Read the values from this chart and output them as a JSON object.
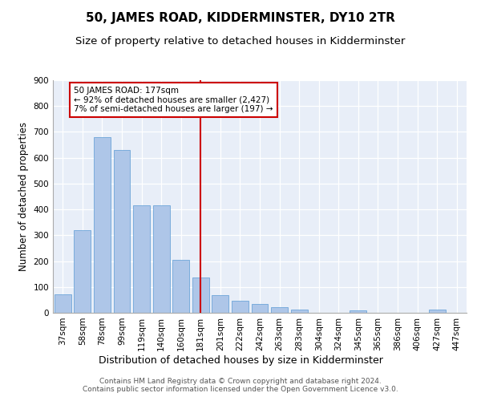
{
  "title": "50, JAMES ROAD, KIDDERMINSTER, DY10 2TR",
  "subtitle": "Size of property relative to detached houses in Kidderminster",
  "xlabel": "Distribution of detached houses by size in Kidderminster",
  "ylabel": "Number of detached properties",
  "categories": [
    "37sqm",
    "58sqm",
    "78sqm",
    "99sqm",
    "119sqm",
    "140sqm",
    "160sqm",
    "181sqm",
    "201sqm",
    "222sqm",
    "242sqm",
    "263sqm",
    "283sqm",
    "304sqm",
    "324sqm",
    "345sqm",
    "365sqm",
    "386sqm",
    "406sqm",
    "427sqm",
    "447sqm"
  ],
  "values": [
    70,
    320,
    680,
    630,
    415,
    415,
    205,
    137,
    68,
    47,
    35,
    22,
    12,
    0,
    0,
    8,
    0,
    0,
    0,
    12,
    0
  ],
  "bar_color": "#aec6e8",
  "bar_edge_color": "#5a9bd4",
  "highlight_line_index": 7,
  "highlight_line_color": "#cc0000",
  "annotation_line1": "50 JAMES ROAD: 177sqm",
  "annotation_line2": "← 92% of detached houses are smaller (2,427)",
  "annotation_line3": "7% of semi-detached houses are larger (197) →",
  "annotation_box_facecolor": "white",
  "annotation_box_edgecolor": "#cc0000",
  "ylim": [
    0,
    900
  ],
  "yticks": [
    0,
    100,
    200,
    300,
    400,
    500,
    600,
    700,
    800,
    900
  ],
  "axes_facecolor": "#e8eef8",
  "grid_color": "white",
  "title_fontsize": 11,
  "subtitle_fontsize": 9.5,
  "xlabel_fontsize": 9,
  "ylabel_fontsize": 8.5,
  "tick_fontsize": 7.5,
  "annotation_fontsize": 7.5,
  "footer_fontsize": 6.5,
  "footer_line1": "Contains HM Land Registry data © Crown copyright and database right 2024.",
  "footer_line2": "Contains public sector information licensed under the Open Government Licence v3.0."
}
